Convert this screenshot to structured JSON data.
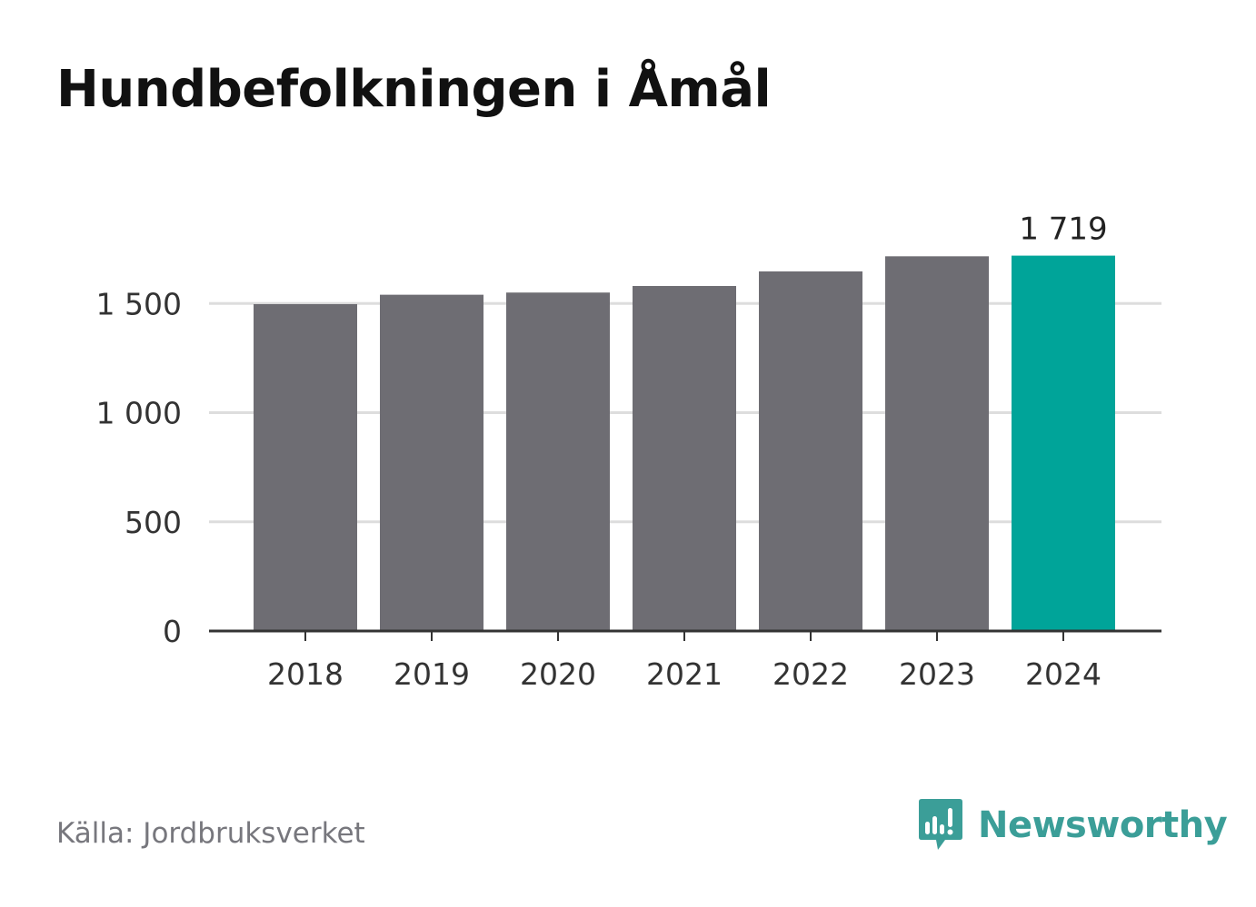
{
  "header": {
    "title": "Hundbefolkningen i Åmål"
  },
  "chart_data": {
    "type": "bar",
    "title": "Hundbefolkningen i Åmål",
    "xlabel": "",
    "ylabel": "",
    "categories": [
      "2018",
      "2019",
      "2020",
      "2021",
      "2022",
      "2023",
      "2024"
    ],
    "values": [
      1497,
      1540,
      1550,
      1580,
      1647,
      1716,
      1719
    ],
    "ylim": [
      0,
      1800
    ],
    "yticks": [
      0,
      500,
      1000,
      1500
    ],
    "ytick_labels": [
      "0",
      "500",
      "1 000",
      "1 500"
    ],
    "grid": true,
    "highlight_index": 6,
    "data_labels": [
      {
        "index": 6,
        "text": "1 719"
      }
    ],
    "colors": {
      "bar": "#6e6d73",
      "highlight": "#00a499",
      "grid": "#dddddd",
      "axis": "#333333"
    }
  },
  "footer": {
    "source": "Källa: Jordbruksverket",
    "brand_name": "Newsworthy",
    "brand_icon": "newsworthy-logo-icon",
    "brand_color": "#3b9e98"
  }
}
